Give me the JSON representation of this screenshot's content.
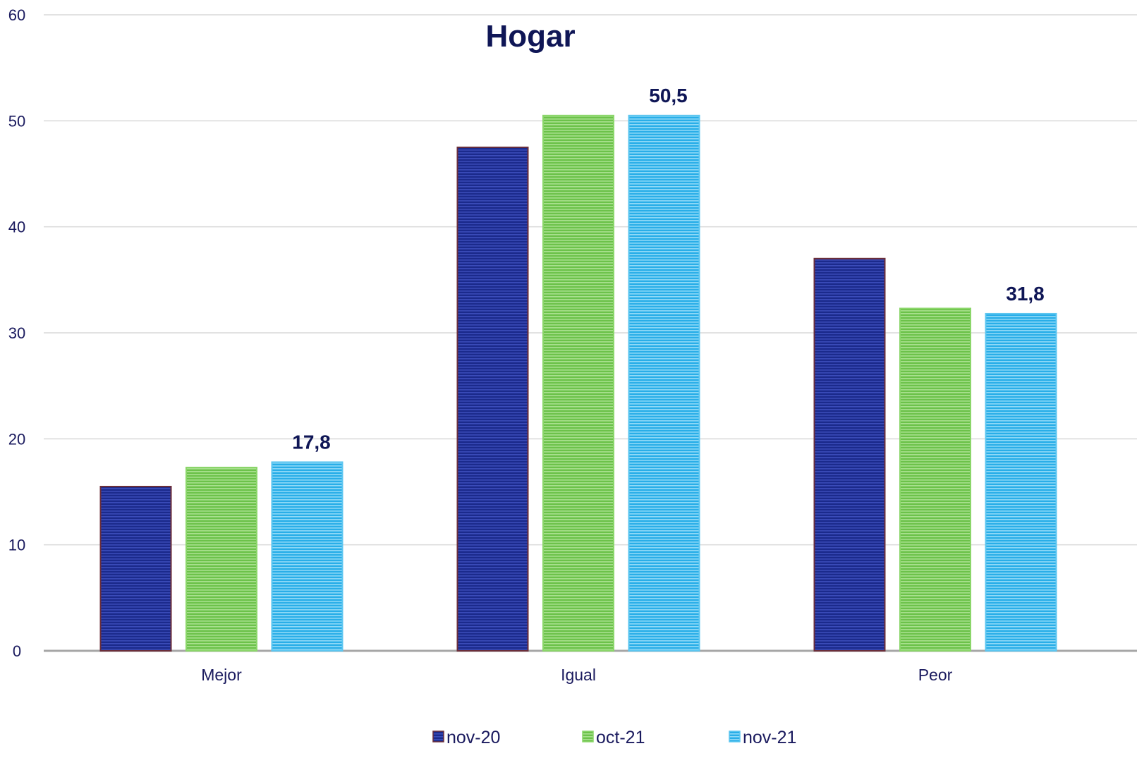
{
  "chart_data": {
    "type": "bar",
    "title": "Hogar",
    "categories": [
      "Mejor",
      "Igual",
      "Peor"
    ],
    "series": [
      {
        "name": "nov-20",
        "values": [
          15.5,
          47.5,
          37.0
        ],
        "color": "#1b2a8c",
        "stroke": "#6b2e3a",
        "stripe": "#3a4bb8"
      },
      {
        "name": "oct-21",
        "values": [
          17.3,
          50.5,
          32.3
        ],
        "color": "#6cc24a",
        "stroke": "#8bd66a",
        "stripe": "#a8e08e"
      },
      {
        "name": "nov-21",
        "values": [
          17.8,
          50.5,
          31.8
        ],
        "color": "#29aee8",
        "stroke": "#5cc6f0",
        "stripe": "#8fd9f7"
      }
    ],
    "data_labels": [
      "17,8",
      "50,5",
      "31,8"
    ],
    "labeled_series": "nov-21",
    "ylim": [
      0,
      60
    ],
    "yticks": [
      0,
      10,
      20,
      30,
      40,
      50,
      60
    ],
    "ytick_labels": [
      "0",
      "10",
      "20",
      "30",
      "40",
      "50",
      "60"
    ],
    "grid": true,
    "legend_position": "bottom"
  }
}
